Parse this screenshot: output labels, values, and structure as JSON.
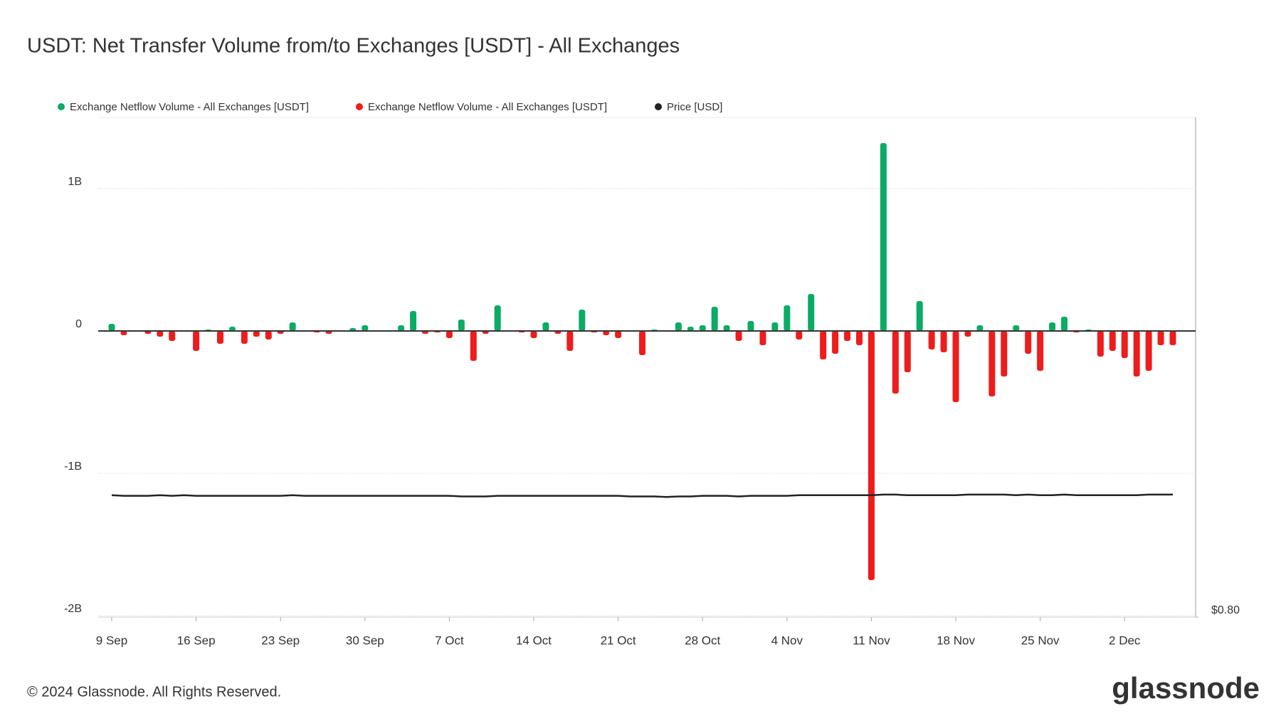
{
  "chart_data": {
    "type": "bar",
    "title": "USDT: Net Transfer Volume from/to Exchanges [USDT] - All Exchanges",
    "categories": [
      "9 Sep",
      null,
      null,
      null,
      null,
      null,
      null,
      "16 Sep",
      null,
      null,
      null,
      null,
      null,
      null,
      "23 Sep",
      null,
      null,
      null,
      null,
      null,
      null,
      "30 Sep",
      null,
      null,
      null,
      null,
      null,
      null,
      "7 Oct",
      null,
      null,
      null,
      null,
      null,
      null,
      "14 Oct",
      null,
      null,
      null,
      null,
      null,
      null,
      "21 Oct",
      null,
      null,
      null,
      null,
      null,
      null,
      "28 Oct",
      null,
      null,
      null,
      null,
      null,
      null,
      "4 Nov",
      null,
      null,
      null,
      null,
      null,
      null,
      "11 Nov",
      null,
      null,
      null,
      null,
      null,
      null,
      "18 Nov",
      null,
      null,
      null,
      null,
      null,
      null,
      "25 Nov",
      null,
      null,
      null,
      null,
      null,
      null,
      "2 Dec",
      null,
      null,
      null,
      null
    ],
    "series": [
      {
        "name": "Exchange Netflow Volume - All Exchanges [USDT]",
        "color": "#0aab63",
        "values": [
          50000000,
          null,
          0,
          null,
          null,
          null,
          0,
          null,
          10000000,
          null,
          30000000,
          null,
          null,
          null,
          null,
          60000000,
          0,
          null,
          null,
          0,
          20000000,
          40000000,
          0,
          0,
          40000000,
          140000000,
          null,
          null,
          null,
          80000000,
          null,
          null,
          180000000,
          0,
          null,
          null,
          60000000,
          null,
          null,
          150000000,
          null,
          null,
          null,
          0,
          null,
          10000000,
          0,
          60000000,
          30000000,
          40000000,
          170000000,
          40000000,
          null,
          70000000,
          null,
          60000000,
          180000000,
          null,
          260000000,
          null,
          null,
          null,
          null,
          null,
          1320000000,
          null,
          null,
          210000000,
          null,
          null,
          null,
          null,
          40000000,
          null,
          null,
          40000000,
          null,
          null,
          60000000,
          100000000,
          null,
          10000000,
          null,
          null,
          null,
          null,
          null,
          null,
          null
        ]
      },
      {
        "name": "Exchange Netflow Volume - All Exchanges [USDT]",
        "color": "#ee1c1c",
        "values": [
          null,
          -30000000,
          null,
          -20000000,
          -40000000,
          -70000000,
          null,
          -140000000,
          null,
          -90000000,
          null,
          -90000000,
          -40000000,
          -60000000,
          -20000000,
          null,
          null,
          -10000000,
          -20000000,
          null,
          null,
          null,
          null,
          null,
          null,
          null,
          -20000000,
          -10000000,
          -50000000,
          null,
          -210000000,
          -20000000,
          null,
          null,
          -10000000,
          -50000000,
          null,
          -20000000,
          -140000000,
          null,
          -10000000,
          -30000000,
          -50000000,
          null,
          -170000000,
          null,
          null,
          null,
          null,
          null,
          null,
          null,
          -70000000,
          null,
          -100000000,
          null,
          null,
          -60000000,
          null,
          -200000000,
          -160000000,
          -70000000,
          -100000000,
          -1750000000,
          null,
          -440000000,
          -290000000,
          null,
          -130000000,
          -150000000,
          -500000000,
          -40000000,
          null,
          -460000000,
          -320000000,
          null,
          -160000000,
          -280000000,
          null,
          null,
          -10000000,
          null,
          -180000000,
          -140000000,
          -190000000,
          -320000000,
          -280000000,
          -100000000,
          -100000000
        ]
      },
      {
        "name": "Price [USD]",
        "color": "#222222",
        "axis": "y2",
        "values": [
          1.0,
          0.999,
          0.999,
          0.999,
          1.0,
          0.999,
          1.0,
          0.999,
          0.999,
          0.999,
          0.999,
          0.999,
          0.999,
          0.999,
          0.999,
          1.0,
          0.999,
          0.999,
          0.999,
          0.999,
          0.999,
          0.999,
          0.999,
          0.999,
          0.999,
          0.999,
          0.999,
          0.999,
          0.999,
          0.998,
          0.998,
          0.998,
          0.999,
          0.999,
          0.999,
          0.999,
          0.999,
          0.999,
          0.999,
          0.999,
          0.999,
          0.999,
          0.999,
          0.998,
          0.998,
          0.998,
          0.997,
          0.998,
          0.998,
          0.999,
          0.999,
          0.999,
          0.998,
          0.999,
          0.999,
          0.999,
          0.999,
          1.0,
          1.0,
          1.0,
          1.0,
          1.0,
          1.0,
          1.0,
          1.001,
          1.001,
          1.0,
          1.0,
          1.0,
          1.0,
          1.0,
          1.001,
          1.001,
          1.001,
          1.001,
          1.0,
          1.001,
          1.0,
          1.0,
          1.001,
          1.0,
          1.0,
          1.0,
          1.0,
          1.0,
          1.0,
          1.001,
          1.001,
          1.001
        ]
      }
    ],
    "ylim": [
      -2010000000,
      1500000000
    ],
    "yticks": [
      {
        "value": 1000000000,
        "label": "1B"
      },
      0,
      {
        "value": -1000000000,
        "label": "-1B"
      },
      {
        "value": -2000000000,
        "label": "-2B"
      }
    ],
    "y2lim": [
      0.8,
      1.62
    ],
    "y2ticks": [
      {
        "value": 0.8,
        "label": "$0.80"
      }
    ],
    "grid": true,
    "legend": "top-left"
  },
  "footer": {
    "copyright": "© 2024 Glassnode. All Rights Reserved.",
    "logo": "glassnode"
  }
}
